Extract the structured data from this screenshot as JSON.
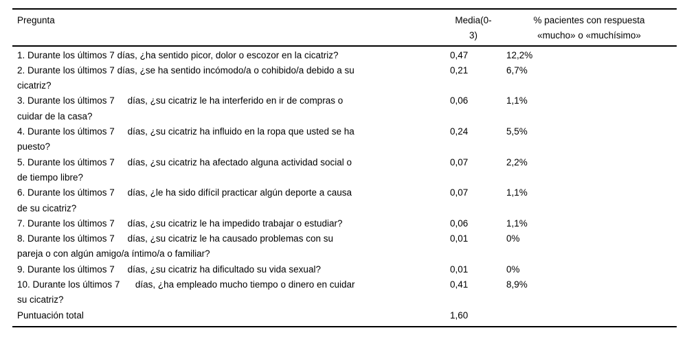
{
  "page": {
    "background": "#ffffff",
    "text_color": "#000000",
    "rule_color": "#000000"
  },
  "table": {
    "headers": {
      "question": "Pregunta",
      "media": "Media(0-\n3)",
      "pct": "% pacientes con respuesta\n«mucho» o «muchísimo»"
    },
    "rows": [
      {
        "question": "1. Durante los últimos 7 días, ¿ha sentido picor, dolor o escozor en la cicatriz?",
        "media": "0,47",
        "pct": "12,2%"
      },
      {
        "question": "2. Durante los últimos 7 días, ¿se ha sentido incómodo/a o cohibido/a debido a su\ncicatriz?",
        "media": "0,21",
        "pct": "6,7%"
      },
      {
        "question": "3. Durante los últimos 7     días, ¿su cicatriz le ha interferido en ir de compras o\ncuidar de la casa?",
        "media": "0,06",
        "pct": "1,1%"
      },
      {
        "question": "4. Durante los últimos 7     días, ¿su cicatriz ha influido en la ropa que usted se ha\npuesto?",
        "media": "0,24",
        "pct": "5,5%"
      },
      {
        "question": "5. Durante los últimos 7     días, ¿su cicatriz ha afectado alguna actividad social o\nde tiempo libre?",
        "media": "0,07",
        "pct": "2,2%"
      },
      {
        "question": "6. Durante los últimos 7     días, ¿le ha sido difícil practicar algún deporte a causa\nde su cicatriz?",
        "media": "0,07",
        "pct": "1,1%"
      },
      {
        "question": "7. Durante los últimos 7     días, ¿su cicatriz le ha impedido trabajar o estudiar?",
        "media": "0,06",
        "pct": "1,1%"
      },
      {
        "question": "8. Durante los últimos 7     días, ¿su cicatriz le ha causado problemas con su\npareja o con algún amigo/a íntimo/a o familiar?",
        "media": "0,01",
        "pct": "0%"
      },
      {
        "question": "9. Durante los últimos 7     días, ¿su cicatriz ha dificultado su vida sexual?",
        "media": "0,01",
        "pct": "0%"
      },
      {
        "question": "10. Durante los últimos 7      días, ¿ha empleado mucho tiempo o dinero en cuidar\nsu cicatriz?",
        "media": "0,41",
        "pct": "8,9%"
      },
      {
        "question": "Puntuación total",
        "media": "1,60",
        "pct": ""
      }
    ]
  }
}
